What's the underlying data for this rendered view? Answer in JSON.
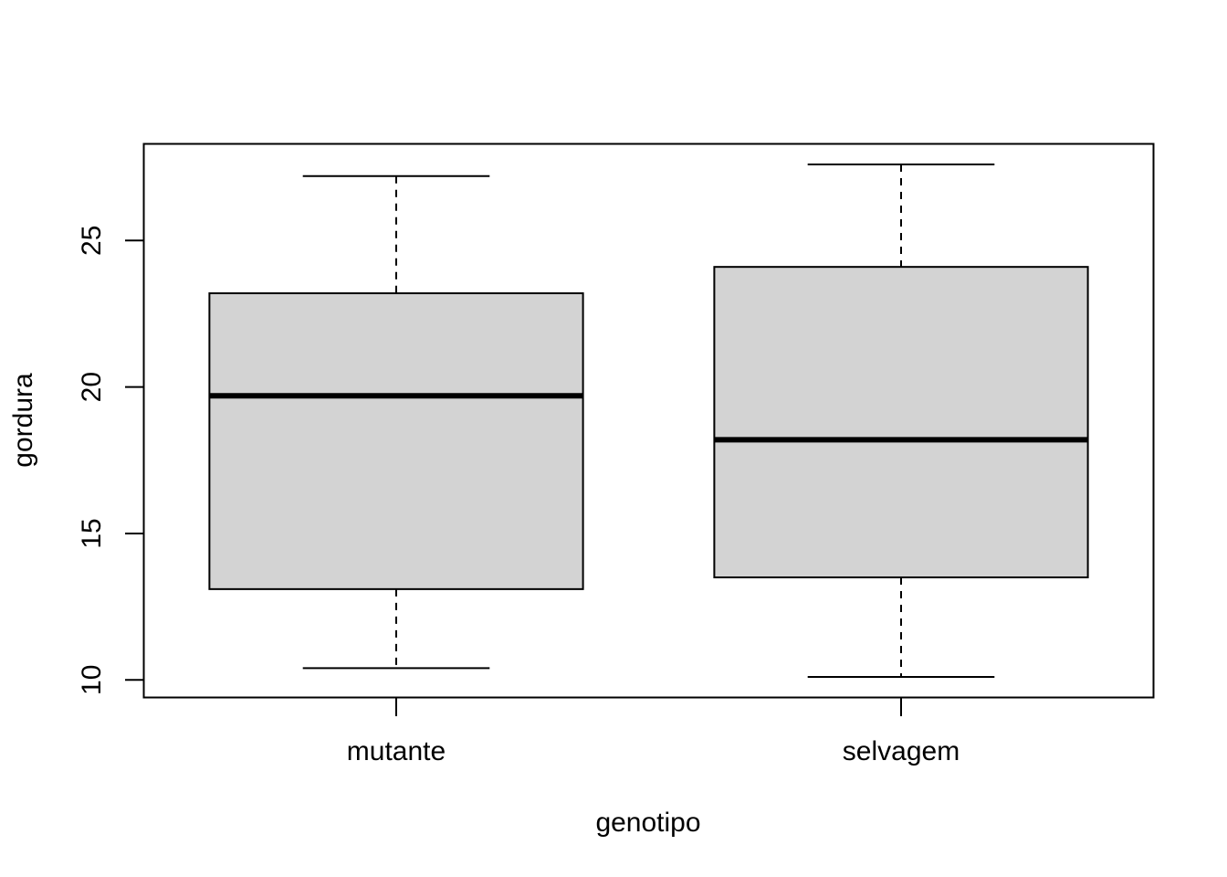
{
  "chart_data": {
    "type": "boxplot",
    "title": "",
    "xlabel": "genotipo",
    "ylabel": "gordura",
    "ylim": [
      9.4,
      28.3
    ],
    "yticks": [
      10,
      15,
      20,
      25
    ],
    "categories": [
      "mutante",
      "selvagem"
    ],
    "boxes": [
      {
        "category": "mutante",
        "min": 10.4,
        "q1": 13.1,
        "median": 19.7,
        "q3": 23.2,
        "max": 27.2
      },
      {
        "category": "selvagem",
        "min": 10.1,
        "q1": 13.5,
        "median": 18.2,
        "q3": 24.1,
        "max": 27.6
      }
    ],
    "box_fill": "#d3d3d3",
    "line_color": "#000000",
    "grid": false
  }
}
